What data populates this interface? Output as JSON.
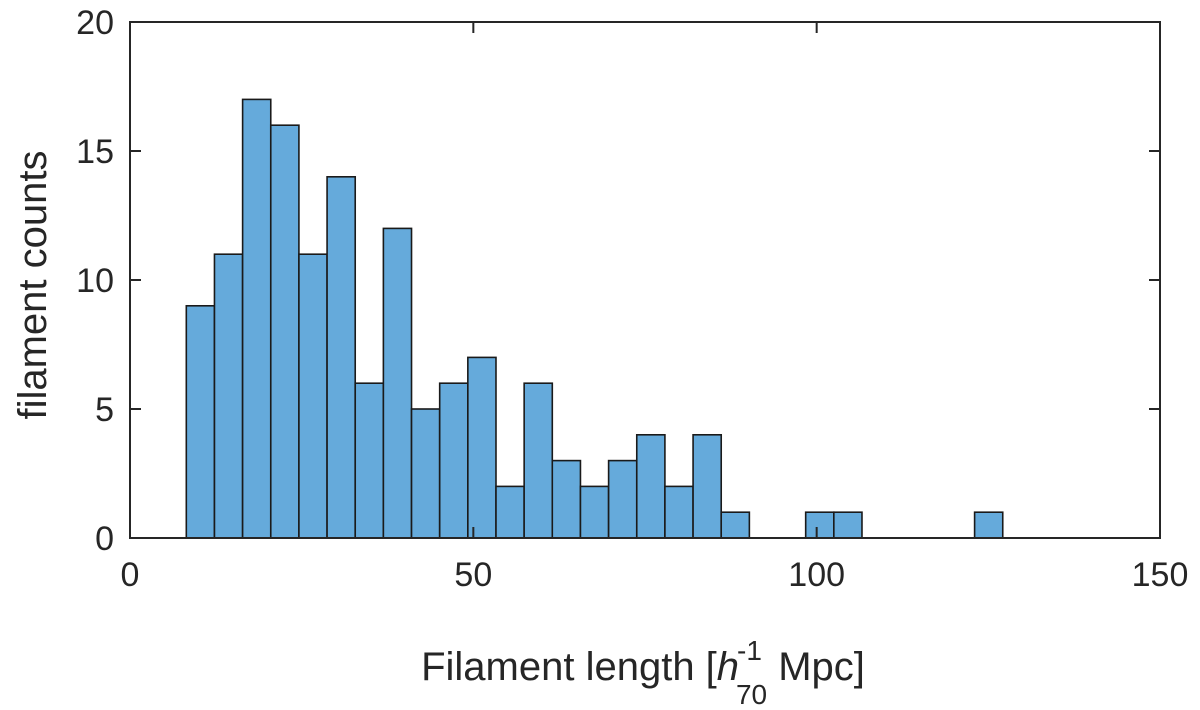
{
  "chart_data": {
    "type": "bar",
    "subtype": "histogram",
    "xlabel": {
      "prefix": "Filament length [",
      "variable": "h",
      "superscript": "-1",
      "subscript": "70",
      "suffix": " Mpc]"
    },
    "ylabel": "filament counts",
    "xlim": [
      0,
      150
    ],
    "ylim": [
      0,
      20
    ],
    "xticks": [
      0,
      50,
      100,
      150
    ],
    "yticks": [
      0,
      5,
      10,
      15,
      20
    ],
    "bin_start": 8.2,
    "bin_width": 4.1,
    "counts": [
      9,
      11,
      17,
      16,
      11,
      14,
      6,
      12,
      5,
      6,
      7,
      2,
      6,
      3,
      2,
      3,
      4,
      2,
      4,
      1,
      0,
      0,
      1,
      1,
      0,
      0,
      0,
      0,
      1
    ],
    "bar_color": "#65aadb",
    "edge_color": "#1a1a1a",
    "grid": false,
    "legend": "none"
  }
}
